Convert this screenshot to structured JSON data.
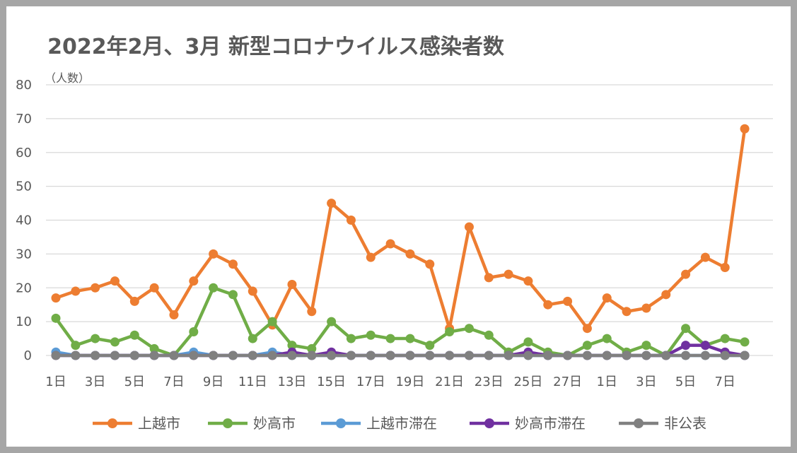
{
  "chart_data": {
    "type": "line",
    "title": "2022年2月、3月 新型コロナウイルス感染者数",
    "ylabel": "（人数）",
    "ylim": [
      0,
      80
    ],
    "yticks": [
      0,
      10,
      20,
      30,
      40,
      50,
      60,
      70,
      80
    ],
    "grid": true,
    "legend_position": "bottom",
    "categories": [
      "2/1",
      "2/2",
      "2/3",
      "2/4",
      "2/5",
      "2/6",
      "2/7",
      "2/8",
      "2/9",
      "2/10",
      "2/11",
      "2/12",
      "2/13",
      "2/14",
      "2/15",
      "2/16",
      "2/17",
      "2/18",
      "2/19",
      "2/20",
      "2/21",
      "2/22",
      "2/23",
      "2/24",
      "2/25",
      "2/26",
      "2/27",
      "2/28",
      "3/1",
      "3/2",
      "3/3",
      "3/4",
      "3/5",
      "3/6",
      "3/7",
      "3/8"
    ],
    "tick_labels": [
      "1日",
      "",
      "3日",
      "",
      "5日",
      "",
      "7日",
      "",
      "9日",
      "",
      "11日",
      "",
      "13日",
      "",
      "15日",
      "",
      "17日",
      "",
      "19日",
      "",
      "21日",
      "",
      "23日",
      "",
      "25日",
      "",
      "27日",
      "",
      "1日",
      "",
      "3日",
      "",
      "5日",
      "",
      "7日",
      ""
    ],
    "series": [
      {
        "name": "上越市",
        "color": "#ed7d31",
        "values": [
          17,
          19,
          20,
          22,
          16,
          20,
          12,
          22,
          30,
          27,
          19,
          9,
          21,
          13,
          45,
          40,
          29,
          33,
          30,
          27,
          8,
          38,
          23,
          24,
          22,
          15,
          16,
          8,
          17,
          13,
          14,
          18,
          24,
          29,
          26,
          67
        ]
      },
      {
        "name": "妙高市",
        "color": "#70ad47",
        "values": [
          11,
          3,
          5,
          4,
          6,
          2,
          0,
          7,
          20,
          18,
          5,
          10,
          3,
          2,
          10,
          5,
          6,
          5,
          5,
          3,
          7,
          8,
          6,
          1,
          4,
          1,
          0,
          3,
          5,
          1,
          3,
          0,
          8,
          3,
          5,
          4
        ]
      },
      {
        "name": "上越市滞在",
        "color": "#5b9bd5",
        "values": [
          1,
          0,
          0,
          0,
          0,
          0,
          0,
          1,
          0,
          0,
          0,
          1,
          0,
          0,
          0,
          0,
          0,
          0,
          0,
          0,
          0,
          0,
          0,
          0,
          0,
          0,
          0,
          0,
          0,
          0,
          0,
          0,
          0,
          0,
          0,
          0
        ]
      },
      {
        "name": "妙高市滞在",
        "color": "#7030a0",
        "values": [
          0,
          0,
          0,
          0,
          0,
          0,
          0,
          0,
          0,
          0,
          0,
          0,
          1,
          0,
          1,
          0,
          0,
          0,
          0,
          0,
          0,
          0,
          0,
          0,
          1,
          0,
          0,
          0,
          0,
          0,
          0,
          0,
          3,
          3,
          1,
          0
        ]
      },
      {
        "name": "非公表",
        "color": "#808080",
        "values": [
          0,
          0,
          0,
          0,
          0,
          0,
          0,
          0,
          0,
          0,
          0,
          0,
          0,
          0,
          0,
          0,
          0,
          0,
          0,
          0,
          0,
          0,
          0,
          0,
          0,
          0,
          0,
          0,
          0,
          0,
          0,
          0,
          0,
          0,
          0,
          0
        ]
      }
    ]
  }
}
